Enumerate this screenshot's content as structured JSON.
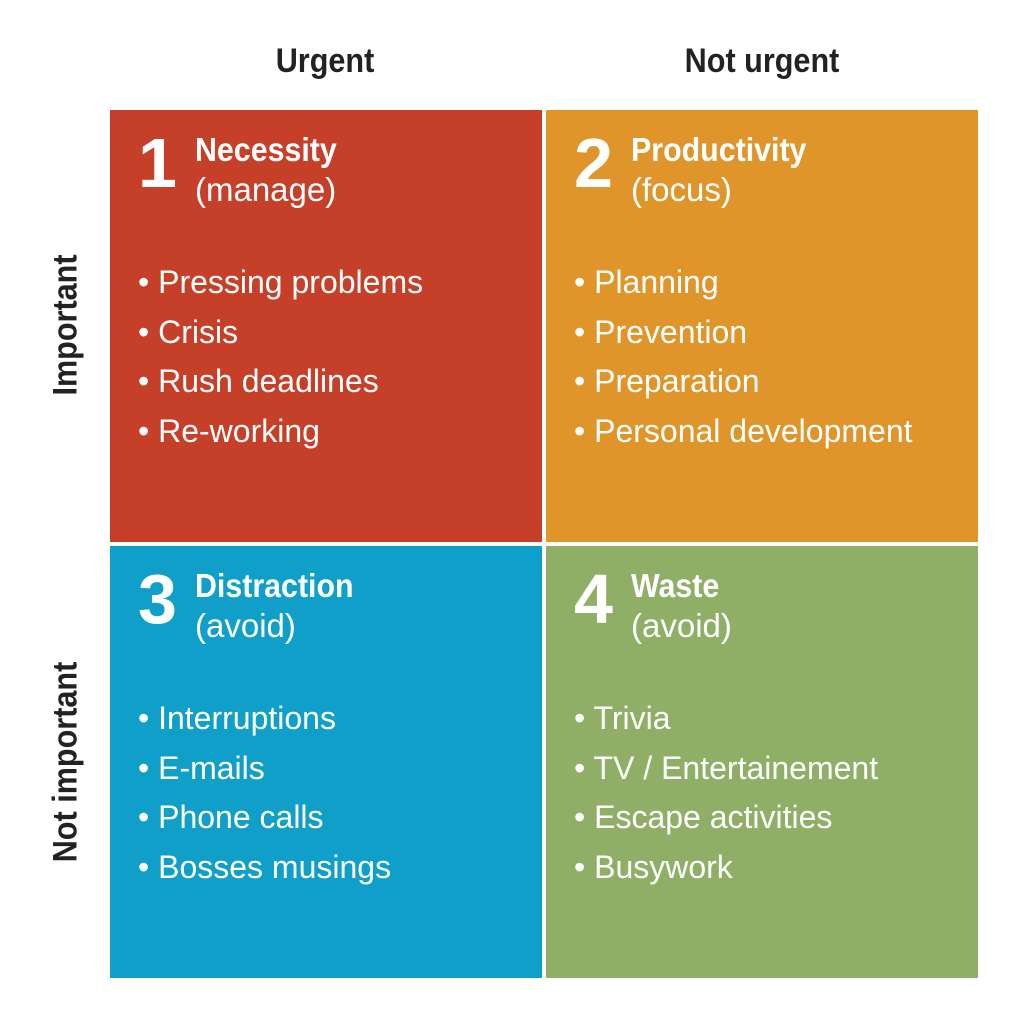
{
  "columns": [
    "Urgent",
    "Not urgent"
  ],
  "rows": [
    "Important",
    "Not important"
  ],
  "quadrants": [
    {
      "number": "1",
      "title": "Necessity",
      "subtitle": "(manage)",
      "color": "#C63F28",
      "items": [
        "Pressing problems",
        "Crisis",
        "Rush deadlines",
        "Re-working"
      ]
    },
    {
      "number": "2",
      "title": "Productivity",
      "subtitle": "(focus)",
      "color": "#E0952A",
      "items": [
        "Planning",
        "Prevention",
        "Preparation",
        "Personal development"
      ]
    },
    {
      "number": "3",
      "title": "Distraction",
      "subtitle": "(avoid)",
      "color": "#109FC8",
      "items": [
        "Interruptions",
        "E-mails",
        "Phone calls",
        "Bosses musings"
      ]
    },
    {
      "number": "4",
      "title": "Waste",
      "subtitle": "(avoid)",
      "color": "#8FAF66",
      "items": [
        "Trivia",
        "TV / Entertainement",
        "Escape activities",
        "Busywork"
      ]
    }
  ]
}
